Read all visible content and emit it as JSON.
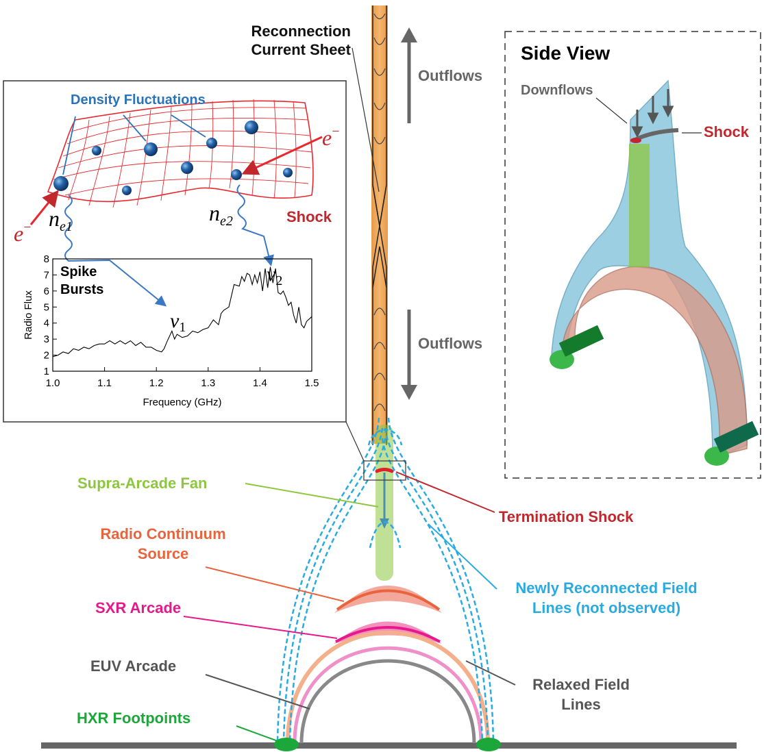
{
  "colors": {
    "shock_red": "#c1272d",
    "density_blue": "#2b73b8",
    "flow_gray": "#666666",
    "fan_green": "#8dc63f",
    "radio_orange": "#e8643c",
    "sxr_pink": "#e6198c",
    "euv_gray": "#555555",
    "hxr_green": "#1ca73a",
    "field_cyan": "#29abe2",
    "sheet_orange": "#f0a050",
    "sideview_blue": "#7cbfd8",
    "sideview_loop": "#d99a88"
  },
  "labels": {
    "current_sheet": [
      "Reconnection",
      "Current Sheet"
    ],
    "outflows_top": "Outflows",
    "outflows_bottom": "Outflows",
    "side_view": "Side View",
    "downflows": "Downflows",
    "side_shock": "Shock",
    "density_fluctuations": "Density Fluctuations",
    "inset_shock": "Shock",
    "electron": "e",
    "electron_sup": "−",
    "ne1_main": "n",
    "ne1_sub": "e1",
    "ne2_main": "n",
    "ne2_sub": "e2",
    "supra_arcade_fan": "Supra-Arcade Fan",
    "termination_shock": "Termination Shock",
    "radio_continuum": [
      "Radio Continuum",
      "Source"
    ],
    "newly_reconnected": [
      "Newly Reconnected Field",
      "Lines (not observed)"
    ],
    "sxr_arcade": "SXR Arcade",
    "euv_arcade": "EUV Arcade",
    "relaxed_field": [
      "Relaxed Field",
      "Lines"
    ],
    "hxr_footpoints": "HXR Footpoints"
  },
  "chart_data": {
    "type": "line",
    "title": [
      "Spike",
      "Bursts"
    ],
    "xlabel": "Frequency (GHz)",
    "ylabel": "Radio Flux",
    "xlim": [
      1.0,
      1.5
    ],
    "ylim": [
      1,
      8
    ],
    "xticks": [
      "1.0",
      "1.1",
      "1.2",
      "1.3",
      "1.4",
      "1.5"
    ],
    "yticks": [
      "1",
      "2",
      "3",
      "4",
      "5",
      "6",
      "7",
      "8"
    ],
    "annotations": [
      {
        "text_main": "ν",
        "text_sub": "1",
        "x": 1.235,
        "y": 4.3
      },
      {
        "text_main": "ν",
        "text_sub": "2",
        "x": 1.428,
        "y": 7.2
      }
    ],
    "series": [
      {
        "x": [
          1.0,
          1.01,
          1.02,
          1.03,
          1.04,
          1.05,
          1.06,
          1.07,
          1.08,
          1.09,
          1.1,
          1.11,
          1.12,
          1.13,
          1.14,
          1.15,
          1.16,
          1.17,
          1.18,
          1.19,
          1.2,
          1.21,
          1.215,
          1.22,
          1.23,
          1.235,
          1.24,
          1.25,
          1.26,
          1.27,
          1.28,
          1.29,
          1.3,
          1.31,
          1.32,
          1.325,
          1.33,
          1.34,
          1.35,
          1.36,
          1.365,
          1.37,
          1.375,
          1.38,
          1.385,
          1.39,
          1.395,
          1.4,
          1.405,
          1.41,
          1.415,
          1.42,
          1.425,
          1.43,
          1.435,
          1.44,
          1.445,
          1.45,
          1.455,
          1.46,
          1.465,
          1.47,
          1.475,
          1.48,
          1.485,
          1.49,
          1.5
        ],
        "y": [
          1.9,
          2.0,
          2.2,
          2.1,
          2.4,
          2.3,
          2.5,
          2.4,
          2.6,
          2.7,
          2.7,
          2.9,
          2.7,
          2.9,
          2.7,
          2.9,
          2.6,
          2.8,
          2.5,
          2.5,
          2.3,
          2.2,
          2.4,
          2.8,
          3.5,
          3.0,
          3.3,
          3.1,
          3.2,
          3.5,
          3.4,
          3.6,
          3.7,
          4.2,
          3.9,
          4.6,
          4.8,
          5.0,
          6.4,
          6.3,
          6.9,
          6.6,
          7.1,
          7.0,
          6.4,
          7.0,
          6.5,
          7.2,
          6.0,
          7.4,
          6.2,
          7.5,
          6.5,
          7.4,
          5.9,
          5.8,
          6.0,
          5.6,
          5.1,
          5.3,
          4.5,
          4.0,
          5.0,
          3.9,
          3.7,
          4.1,
          4.4
        ]
      }
    ]
  }
}
